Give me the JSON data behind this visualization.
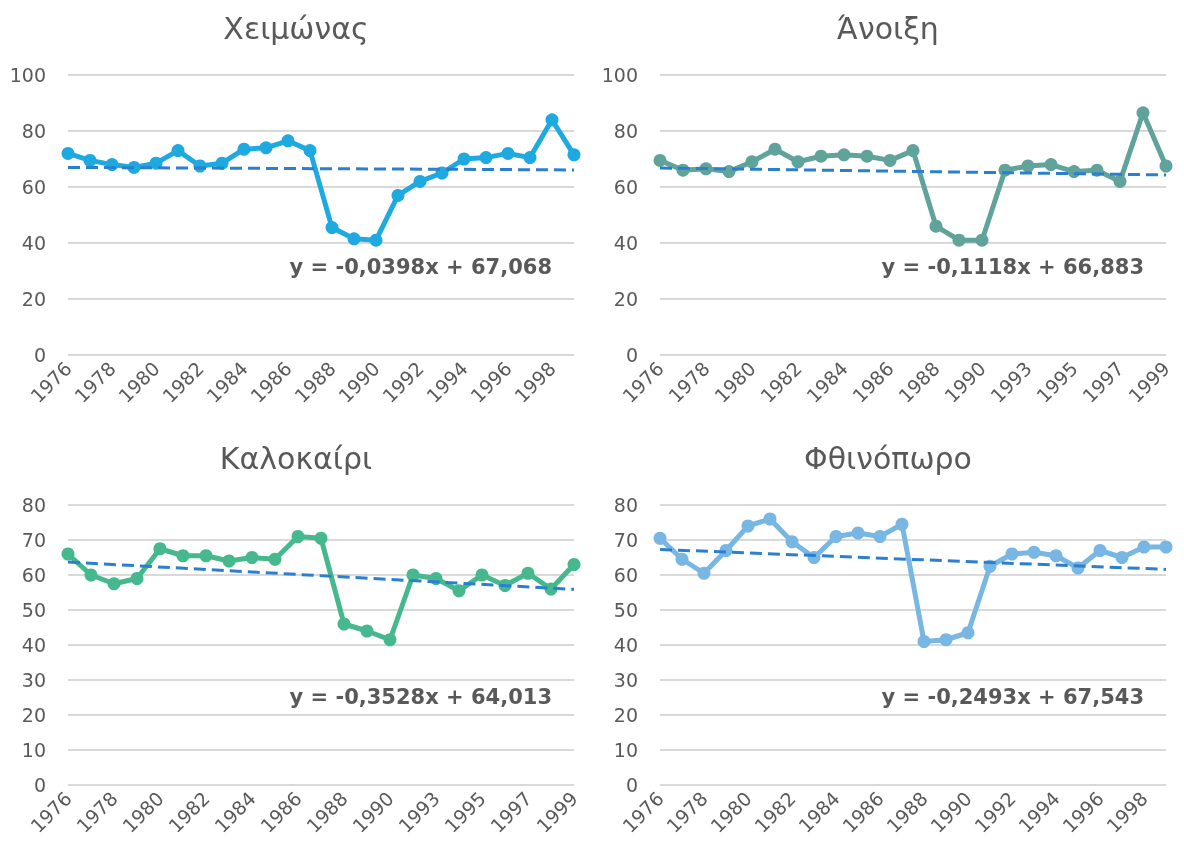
{
  "chart_data": [
    {
      "type": "line",
      "title": "Χειμώνας",
      "categories": [
        "1976",
        null,
        "1978",
        null,
        "1980",
        null,
        "1982",
        null,
        "1984",
        null,
        "1986",
        null,
        "1988",
        null,
        "1990",
        null,
        "1992",
        null,
        "1994",
        null,
        "1996",
        null,
        "1998",
        null
      ],
      "ylim": [
        0,
        100
      ],
      "yticks": [
        0,
        20,
        40,
        60,
        80,
        100
      ],
      "grid": "y",
      "marker": "circle",
      "annotations": [
        "y = -0,0398x + 67,068"
      ],
      "series": [
        {
          "color": "#1fa9e1",
          "values": [
            72,
            69.5,
            68,
            67,
            68.5,
            73,
            67.5,
            68.5,
            73.5,
            74,
            76.5,
            73,
            45.5,
            41.5,
            41,
            57,
            62,
            65,
            70,
            70.5,
            72,
            70.5,
            84,
            71.5
          ]
        },
        {
          "color": "#2b7fcf",
          "line_style": "dashed",
          "marker": "none",
          "values": [
            67,
            null,
            null,
            null,
            null,
            null,
            null,
            null,
            null,
            null,
            null,
            null,
            null,
            null,
            null,
            null,
            null,
            null,
            null,
            null,
            null,
            null,
            null,
            66.1
          ]
        }
      ]
    },
    {
      "type": "line",
      "title": "Άνοιξη",
      "categories": [
        "1976",
        null,
        "1978",
        null,
        "1980",
        null,
        "1982",
        null,
        "1984",
        null,
        "1986",
        null,
        "1988",
        null,
        "1990",
        null,
        "1993",
        null,
        "1995",
        null,
        "1997",
        null,
        "1999"
      ],
      "ylim": [
        0,
        100
      ],
      "yticks": [
        0,
        20,
        40,
        60,
        80,
        100
      ],
      "grid": "y",
      "marker": "circle",
      "annotations": [
        "y = -0,1118x + 66,883"
      ],
      "series": [
        {
          "color": "#5fa39a",
          "values": [
            69.5,
            66,
            66.5,
            65.5,
            69,
            73.5,
            69,
            71,
            71.5,
            71,
            69.5,
            73,
            46,
            41,
            41,
            66,
            67.5,
            68,
            65.5,
            66,
            62,
            86.5,
            67.5
          ]
        },
        {
          "color": "#2b7fcf",
          "line_style": "dashed",
          "marker": "none",
          "values": [
            66.8,
            null,
            null,
            null,
            null,
            null,
            null,
            null,
            null,
            null,
            null,
            null,
            null,
            null,
            null,
            null,
            null,
            null,
            null,
            null,
            null,
            null,
            64.3
          ]
        }
      ]
    },
    {
      "type": "line",
      "title": "Καλοκαίρι",
      "categories": [
        "1976",
        null,
        "1978",
        null,
        "1980",
        null,
        "1982",
        null,
        "1984",
        null,
        "1986",
        null,
        "1988",
        null,
        "1990",
        null,
        "1993",
        null,
        "1995",
        null,
        "1997",
        null,
        "1999"
      ],
      "ylim": [
        0,
        80
      ],
      "yticks": [
        0,
        10,
        20,
        30,
        40,
        50,
        60,
        70,
        80
      ],
      "grid": "y",
      "marker": "circle",
      "annotations": [
        "y = -0,3528x + 64,013"
      ],
      "series": [
        {
          "color": "#45b98d",
          "values": [
            66,
            60,
            57.5,
            59,
            67.5,
            65.5,
            65.5,
            64,
            65,
            64.5,
            71,
            70.5,
            46,
            44,
            41.5,
            60,
            59,
            55.5,
            60,
            57,
            60.5,
            56,
            63
          ]
        },
        {
          "color": "#2b7fcf",
          "line_style": "dashed",
          "marker": "none",
          "values": [
            63.7,
            null,
            null,
            null,
            null,
            null,
            null,
            null,
            null,
            null,
            null,
            null,
            null,
            null,
            null,
            null,
            null,
            null,
            null,
            null,
            null,
            null,
            55.9
          ]
        }
      ]
    },
    {
      "type": "line",
      "title": "Φθινόπωρο",
      "categories": [
        "1976",
        null,
        "1978",
        null,
        "1980",
        null,
        "1982",
        null,
        "1984",
        null,
        "1986",
        null,
        "1988",
        null,
        "1990",
        null,
        "1992",
        null,
        "1994",
        null,
        "1996",
        null,
        "1998",
        null
      ],
      "ylim": [
        0,
        80
      ],
      "yticks": [
        0,
        10,
        20,
        30,
        40,
        50,
        60,
        70,
        80
      ],
      "grid": "y",
      "marker": "circle",
      "annotations": [
        "y = -0,2493x + 67,543"
      ],
      "series": [
        {
          "color": "#78b6e4",
          "values": [
            70.5,
            64.5,
            60.5,
            67,
            74,
            76,
            69.5,
            65,
            71,
            72,
            71,
            74.5,
            41,
            41.5,
            43.5,
            62.5,
            66,
            66.5,
            65.5,
            62,
            67,
            65,
            68,
            68
          ]
        },
        {
          "color": "#2b7fcf",
          "line_style": "dashed",
          "marker": "none",
          "values": [
            67.3,
            null,
            null,
            null,
            null,
            null,
            null,
            null,
            null,
            null,
            null,
            null,
            null,
            null,
            null,
            null,
            null,
            null,
            null,
            null,
            null,
            null,
            null,
            61.6
          ]
        }
      ]
    }
  ]
}
